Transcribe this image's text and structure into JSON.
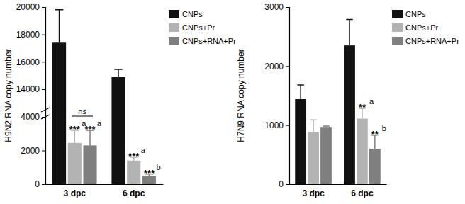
{
  "chart_data": [
    {
      "type": "bar",
      "ylabel": "H9N2 RNA copy number",
      "categories": [
        "3 dpc",
        "6 dpc"
      ],
      "ylim": [
        0,
        20000
      ],
      "y_break": [
        4000,
        12500
      ],
      "yticks": [
        0,
        2000,
        4000,
        14000,
        16000,
        18000,
        20000
      ],
      "legend": "right",
      "series": [
        {
          "name": "CNPs",
          "color": "#111111",
          "values": [
            17400,
            14900
          ],
          "errors": [
            2400,
            550
          ]
        },
        {
          "name": "CNPs+Pr",
          "color": "#b3b3b3",
          "values": [
            2450,
            1400
          ],
          "errors": [
            750,
            200
          ]
        },
        {
          "name": "CNPs+RNA+Pr",
          "color": "#7f7f7f",
          "values": [
            2300,
            480
          ],
          "errors": [
            900,
            120
          ]
        }
      ],
      "significance": [
        {
          "category": "3 dpc",
          "series": "CNPs+Pr",
          "stars": "***",
          "letter": "a"
        },
        {
          "category": "3 dpc",
          "series": "CNPs+RNA+Pr",
          "stars": "***",
          "letter": "a"
        },
        {
          "category": "6 dpc",
          "series": "CNPs+Pr",
          "stars": "***",
          "letter": "a"
        },
        {
          "category": "6 dpc",
          "series": "CNPs+RNA+Pr",
          "stars": "***",
          "letter": "b"
        }
      ],
      "comparisons": [
        {
          "category": "3 dpc",
          "series": [
            "CNPs+Pr",
            "CNPs+RNA+Pr"
          ],
          "text": "ns"
        }
      ]
    },
    {
      "type": "bar",
      "ylabel": "H7N9 RNA copy number",
      "categories": [
        "3 dpc",
        "6 dpc"
      ],
      "ylim": [
        0,
        3000
      ],
      "yticks": [
        0,
        1000,
        2000,
        3000
      ],
      "legend": "right",
      "series": [
        {
          "name": "CNPs",
          "color": "#111111",
          "values": [
            1440,
            2350
          ],
          "errors": [
            240,
            440
          ]
        },
        {
          "name": "CNPs+Pr",
          "color": "#b3b3b3",
          "values": [
            880,
            1110
          ],
          "errors": [
            210,
            170
          ]
        },
        {
          "name": "CNPs+RNA+Pr",
          "color": "#7f7f7f",
          "values": [
            970,
            600
          ],
          "errors": [
            15,
            230
          ]
        }
      ],
      "significance": [
        {
          "category": "6 dpc",
          "series": "CNPs+Pr",
          "stars": "**",
          "letter": "a"
        },
        {
          "category": "6 dpc",
          "series": "CNPs+RNA+Pr",
          "stars": "**",
          "letter": "b"
        }
      ],
      "comparisons": []
    }
  ]
}
